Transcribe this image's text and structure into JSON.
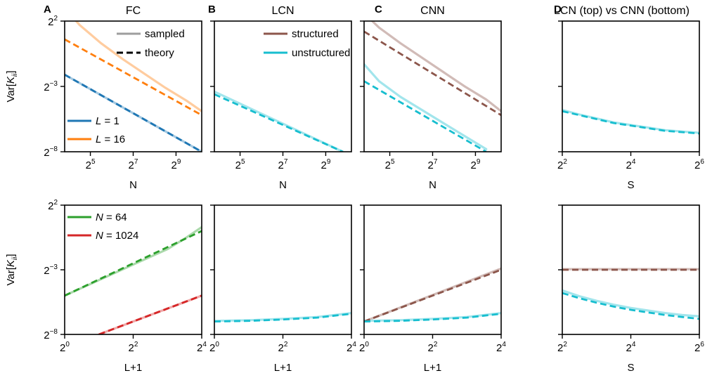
{
  "colors": {
    "sampled": "#9e9e9e",
    "theory": "#000000",
    "L1": "#1f77b4",
    "L16": "#ff7f0e",
    "N64": "#2ca02c",
    "N1024": "#d62728",
    "structured": "#8c564b",
    "unstructured": "#17becf"
  },
  "figure": {
    "panel_letters": [
      "A",
      "B",
      "C",
      "D"
    ],
    "titles": [
      "FC",
      "LCN",
      "CNN",
      "LCN (top) vs CNN (bottom)"
    ]
  },
  "chart_data": [
    {
      "id": "A-top",
      "type": "line",
      "title": "FC",
      "xlabel": "N",
      "ylabel": "Var[K_ii]",
      "x_scale": "log2",
      "y_scale": "log2",
      "xlim_log2": [
        3.8,
        10.2
      ],
      "ylim_log2": [
        -8,
        2
      ],
      "xticks": [
        5,
        7,
        9
      ],
      "yticks": [
        2,
        -3,
        -8
      ],
      "tick_base": "2",
      "legend": {
        "placement": "top-right",
        "entries": [
          "sampled",
          "theory"
        ]
      },
      "legend2": {
        "placement": "lower-left",
        "entries": [
          {
            "label": "L = 1",
            "color": "L1"
          },
          {
            "label": "L = 16",
            "color": "L16"
          }
        ]
      },
      "series": [
        {
          "color": "L1",
          "style": "theory",
          "x": [
            3.8,
            10.2
          ],
          "y": [
            -2.1,
            -8.0
          ]
        },
        {
          "color": "L1",
          "style": "sampled",
          "x": [
            3.8,
            10.2
          ],
          "y": [
            -2.1,
            -8.0
          ]
        },
        {
          "color": "L16",
          "style": "theory",
          "x": [
            3.8,
            10.2
          ],
          "y": [
            0.6,
            -5.2
          ]
        },
        {
          "color": "L16",
          "style": "sampled",
          "x": [
            3.8,
            4.5,
            5.5,
            6.5,
            7.5,
            8.5,
            9.5,
            10.2
          ],
          "y": [
            3.0,
            1.7,
            0.3,
            -0.9,
            -2.0,
            -3.1,
            -4.1,
            -4.9
          ]
        }
      ]
    },
    {
      "id": "B-top",
      "type": "line",
      "title": "LCN",
      "xlabel": "N",
      "ylabel": "",
      "x_scale": "log2",
      "y_scale": "log2",
      "xlim_log2": [
        3.8,
        10.2
      ],
      "ylim_log2": [
        -8,
        2
      ],
      "xticks": [
        5,
        7,
        9
      ],
      "yticks": [
        2,
        -3,
        -8
      ],
      "legend": {
        "placement": "top-right",
        "entries": [
          {
            "label": "structured",
            "color": "structured"
          },
          {
            "label": "unstructured",
            "color": "unstructured"
          }
        ]
      },
      "series": [
        {
          "color": "unstructured",
          "style": "theory",
          "x": [
            3.8,
            9.8
          ],
          "y": [
            -3.6,
            -8.0
          ]
        },
        {
          "color": "unstructured",
          "style": "sampled",
          "x": [
            3.8,
            9.8
          ],
          "y": [
            -3.4,
            -8.0
          ]
        }
      ]
    },
    {
      "id": "C-top",
      "type": "line",
      "title": "CNN",
      "xlabel": "N",
      "ylabel": "",
      "x_scale": "log2",
      "y_scale": "log2",
      "xlim_log2": [
        3.8,
        10.2
      ],
      "ylim_log2": [
        -8,
        2
      ],
      "xticks": [
        5,
        7,
        9
      ],
      "yticks": [
        2,
        -3,
        -8
      ],
      "series": [
        {
          "color": "structured",
          "style": "theory",
          "x": [
            3.8,
            10.2
          ],
          "y": [
            1.2,
            -5.2
          ]
        },
        {
          "color": "structured",
          "style": "sampled",
          "x": [
            3.8,
            4.5,
            5.5,
            6.5,
            7.5,
            8.5,
            9.5,
            10.2
          ],
          "y": [
            2.6,
            1.5,
            0.3,
            -0.8,
            -1.9,
            -3.0,
            -4.0,
            -4.9
          ]
        },
        {
          "color": "unstructured",
          "style": "theory",
          "x": [
            3.8,
            9.5
          ],
          "y": [
            -2.6,
            -8.0
          ]
        },
        {
          "color": "unstructured",
          "style": "sampled",
          "x": [
            3.8,
            4.5,
            5.5,
            6.5,
            7.5,
            8.5,
            9.5
          ],
          "y": [
            -1.3,
            -2.6,
            -3.8,
            -4.8,
            -5.8,
            -6.8,
            -7.8
          ]
        }
      ]
    },
    {
      "id": "D-top",
      "type": "line",
      "title": "LCN (top) vs CNN (bottom)",
      "xlabel": "S",
      "ylabel": "",
      "x_scale": "log2",
      "y_scale": "log2",
      "xlim_log2": [
        2,
        6
      ],
      "ylim_log2": [
        -8,
        2
      ],
      "xticks": [
        2,
        4,
        6
      ],
      "yticks": [
        2,
        -3,
        -8
      ],
      "series": [
        {
          "color": "unstructured",
          "style": "theory",
          "x": [
            2,
            2.5,
            3,
            3.5,
            4,
            4.5,
            5,
            5.5,
            6
          ],
          "y": [
            -4.9,
            -5.2,
            -5.5,
            -5.8,
            -6.0,
            -6.2,
            -6.4,
            -6.5,
            -6.6
          ]
        },
        {
          "color": "unstructured",
          "style": "sampled",
          "x": [
            2,
            2.5,
            3,
            3.5,
            4,
            4.5,
            5,
            5.5,
            6
          ],
          "y": [
            -4.8,
            -5.15,
            -5.45,
            -5.75,
            -5.95,
            -6.15,
            -6.35,
            -6.45,
            -6.55
          ]
        }
      ]
    },
    {
      "id": "A-bottom",
      "type": "line",
      "title": "",
      "xlabel": "L+1",
      "ylabel": "Var[K_ii]",
      "x_scale": "log2",
      "y_scale": "log2",
      "xlim_log2": [
        0,
        4
      ],
      "ylim_log2": [
        -8,
        2
      ],
      "xticks": [
        0,
        2,
        4
      ],
      "yticks": [
        2,
        -3,
        -8
      ],
      "legend": {
        "placement": "top-left",
        "entries": [
          {
            "label": "N = 64",
            "color": "N64"
          },
          {
            "label": "N = 1024",
            "color": "N1024"
          }
        ]
      },
      "series": [
        {
          "color": "N64",
          "style": "theory",
          "x": [
            0,
            4
          ],
          "y": [
            -5.0,
            0.0
          ]
        },
        {
          "color": "N64",
          "style": "sampled",
          "x": [
            0,
            1,
            2,
            3,
            3.5,
            4
          ],
          "y": [
            -5.0,
            -3.8,
            -2.6,
            -1.4,
            -0.6,
            0.3
          ]
        },
        {
          "color": "N1024",
          "style": "theory",
          "x": [
            1.0,
            4
          ],
          "y": [
            -8.0,
            -5.0
          ]
        },
        {
          "color": "N1024",
          "style": "sampled",
          "x": [
            1.0,
            4
          ],
          "y": [
            -8.0,
            -5.0
          ]
        }
      ]
    },
    {
      "id": "B-bottom",
      "type": "line",
      "title": "",
      "xlabel": "L+1",
      "ylabel": "",
      "x_scale": "log2",
      "y_scale": "log2",
      "xlim_log2": [
        0,
        4
      ],
      "ylim_log2": [
        -8,
        2
      ],
      "xticks": [
        0,
        2,
        4
      ],
      "yticks": [
        2,
        -3,
        -8
      ],
      "series": [
        {
          "color": "unstructured",
          "style": "theory",
          "x": [
            0,
            1,
            2,
            3,
            4
          ],
          "y": [
            -7.0,
            -6.95,
            -6.85,
            -6.7,
            -6.4
          ]
        },
        {
          "color": "unstructured",
          "style": "sampled",
          "x": [
            0,
            1,
            2,
            3,
            4
          ],
          "y": [
            -6.95,
            -6.9,
            -6.8,
            -6.65,
            -6.35
          ]
        }
      ]
    },
    {
      "id": "C-bottom",
      "type": "line",
      "title": "",
      "xlabel": "L+1",
      "ylabel": "",
      "x_scale": "log2",
      "y_scale": "log2",
      "xlim_log2": [
        0,
        4
      ],
      "ylim_log2": [
        -8,
        2
      ],
      "xticks": [
        0,
        2,
        4
      ],
      "yticks": [
        2,
        -3,
        -8
      ],
      "series": [
        {
          "color": "structured",
          "style": "theory",
          "x": [
            0,
            4
          ],
          "y": [
            -7.0,
            -3.0
          ]
        },
        {
          "color": "structured",
          "style": "sampled",
          "x": [
            0,
            4
          ],
          "y": [
            -7.0,
            -2.9
          ]
        },
        {
          "color": "unstructured",
          "style": "theory",
          "x": [
            0,
            1,
            2,
            3,
            4
          ],
          "y": [
            -7.0,
            -6.95,
            -6.85,
            -6.7,
            -6.4
          ]
        },
        {
          "color": "unstructured",
          "style": "sampled",
          "x": [
            0,
            1,
            2,
            3,
            4
          ],
          "y": [
            -6.95,
            -6.9,
            -6.8,
            -6.65,
            -6.35
          ]
        }
      ]
    },
    {
      "id": "D-bottom",
      "type": "line",
      "title": "",
      "xlabel": "S",
      "ylabel": "",
      "x_scale": "log2",
      "y_scale": "log2",
      "xlim_log2": [
        2,
        6
      ],
      "ylim_log2": [
        -8,
        2
      ],
      "xticks": [
        2,
        4,
        6
      ],
      "yticks": [
        2,
        -3,
        -8
      ],
      "series": [
        {
          "color": "structured",
          "style": "theory",
          "x": [
            2,
            6
          ],
          "y": [
            -3.0,
            -3.0
          ]
        },
        {
          "color": "structured",
          "style": "sampled",
          "x": [
            2,
            6
          ],
          "y": [
            -2.95,
            -2.95
          ]
        },
        {
          "color": "unstructured",
          "style": "theory",
          "x": [
            2,
            2.5,
            3,
            3.5,
            4,
            4.5,
            5,
            5.5,
            6
          ],
          "y": [
            -4.8,
            -5.2,
            -5.55,
            -5.85,
            -6.1,
            -6.3,
            -6.5,
            -6.65,
            -6.8
          ]
        },
        {
          "color": "unstructured",
          "style": "sampled",
          "x": [
            2,
            2.5,
            3,
            3.5,
            4,
            4.5,
            5,
            5.5,
            6
          ],
          "y": [
            -4.6,
            -5.05,
            -5.4,
            -5.7,
            -5.95,
            -6.15,
            -6.35,
            -6.5,
            -6.6
          ]
        }
      ]
    }
  ],
  "legend_labels": {
    "sampled": "sampled",
    "theory": "theory",
    "L1": "L = 1",
    "L16": "L = 16",
    "N64": "N = 64",
    "N1024": "N = 1024",
    "structured": "structured",
    "unstructured": "unstructured"
  }
}
